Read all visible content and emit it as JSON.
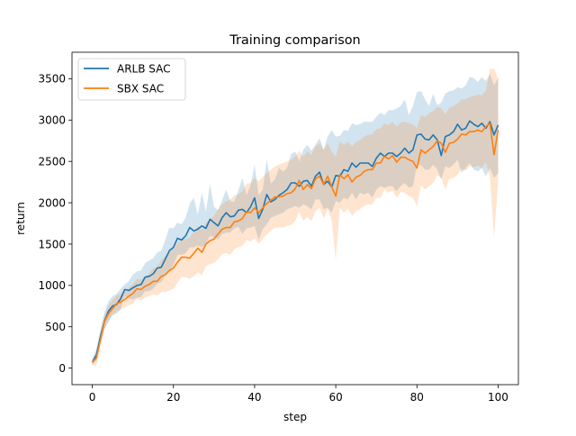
{
  "chart_data": {
    "type": "line",
    "title": "Training comparison",
    "xlabel": "step",
    "ylabel": "return",
    "xlim": [
      -5,
      105
    ],
    "ylim": [
      -200,
      3820
    ],
    "grid": false,
    "legend_position": "top-left",
    "x_ticks": [
      0,
      20,
      40,
      60,
      80,
      100
    ],
    "y_ticks": [
      0,
      500,
      1000,
      1500,
      2000,
      2500,
      3000,
      3500
    ],
    "series": [
      {
        "name": "ARLB SAC",
        "color": "#1f77b4",
        "x": [
          0,
          1,
          2,
          3,
          4,
          5,
          6,
          7,
          8,
          9,
          10,
          11,
          12,
          13,
          14,
          15,
          16,
          17,
          18,
          19,
          20,
          21,
          22,
          23,
          24,
          25,
          26,
          27,
          28,
          29,
          30,
          31,
          32,
          33,
          34,
          35,
          36,
          37,
          38,
          39,
          40,
          41,
          42,
          43,
          44,
          45,
          46,
          47,
          48,
          49,
          50,
          51,
          52,
          53,
          54,
          55,
          56,
          57,
          58,
          59,
          60,
          61,
          62,
          63,
          64,
          65,
          66,
          67,
          68,
          69,
          70,
          71,
          72,
          73,
          74,
          75,
          76,
          77,
          78,
          79,
          80,
          81,
          82,
          83,
          84,
          85,
          86,
          87,
          88,
          89,
          90,
          91,
          92,
          93,
          94,
          95,
          96,
          97,
          98,
          99,
          100
        ],
        "values": [
          70,
          160,
          380,
          570,
          690,
          750,
          770,
          840,
          950,
          940,
          970,
          1000,
          1010,
          1100,
          1110,
          1140,
          1210,
          1220,
          1320,
          1420,
          1460,
          1570,
          1550,
          1600,
          1700,
          1660,
          1680,
          1720,
          1690,
          1800,
          1760,
          1720,
          1820,
          1880,
          1830,
          1840,
          1910,
          1920,
          1880,
          1950,
          2060,
          1810,
          1920,
          2100,
          2010,
          2040,
          2090,
          2120,
          2160,
          2240,
          2240,
          2200,
          2260,
          2270,
          2200,
          2320,
          2370,
          2220,
          2260,
          2190,
          2330,
          2320,
          2400,
          2380,
          2480,
          2430,
          2480,
          2480,
          2480,
          2440,
          2540,
          2600,
          2560,
          2600,
          2600,
          2560,
          2600,
          2660,
          2600,
          2640,
          2820,
          2830,
          2770,
          2760,
          2820,
          2760,
          2570,
          2800,
          2820,
          2860,
          2950,
          2880,
          2900,
          2990,
          2950,
          2920,
          2960,
          2900,
          2980,
          2820,
          2940
        ],
        "upper": [
          120,
          230,
          470,
          680,
          810,
          870,
          900,
          960,
          1010,
          1050,
          1130,
          1170,
          1180,
          1270,
          1300,
          1330,
          1400,
          1420,
          1550,
          1700,
          1690,
          1760,
          1740,
          1820,
          1990,
          2060,
          1860,
          2120,
          1890,
          2230,
          1950,
          1910,
          2030,
          2160,
          2020,
          2010,
          2150,
          2300,
          2090,
          2210,
          2460,
          2090,
          2160,
          2520,
          2230,
          2280,
          2420,
          2380,
          2420,
          2590,
          2620,
          2500,
          2640,
          2700,
          2630,
          2700,
          2780,
          2640,
          2800,
          2880,
          2800,
          2810,
          2880,
          2870,
          2960,
          2940,
          2950,
          2980,
          2980,
          2980,
          3040,
          3090,
          3060,
          3120,
          3120,
          3140,
          3170,
          3250,
          3060,
          3170,
          3340,
          3350,
          3250,
          3170,
          3320,
          3180,
          3210,
          3320,
          3350,
          3360,
          3400,
          3380,
          3420,
          3520,
          3510,
          3460,
          3520,
          3470,
          3560,
          3420,
          3510
        ],
        "lower": [
          30,
          100,
          310,
          470,
          560,
          640,
          660,
          710,
          870,
          840,
          830,
          850,
          860,
          930,
          930,
          960,
          1020,
          1040,
          1120,
          1180,
          1240,
          1370,
          1370,
          1390,
          1460,
          1460,
          1480,
          1460,
          1500,
          1600,
          1580,
          1560,
          1620,
          1640,
          1640,
          1690,
          1710,
          1620,
          1690,
          1700,
          1720,
          1550,
          1680,
          1740,
          1820,
          1840,
          1860,
          1880,
          1920,
          1940,
          1960,
          1940,
          1980,
          1960,
          1920,
          2040,
          2040,
          1920,
          1940,
          1880,
          2020,
          2000,
          2060,
          2040,
          2120,
          2040,
          2120,
          2100,
          2120,
          2060,
          2160,
          2200,
          2180,
          2200,
          2200,
          2140,
          2200,
          2240,
          2180,
          2200,
          2460,
          2450,
          2400,
          2400,
          2460,
          2400,
          2280,
          2440,
          2420,
          2460,
          2520,
          2360,
          2420,
          2480,
          2400,
          2380,
          2420,
          2320,
          2420,
          2300,
          2360
        ]
      },
      {
        "name": "SBX SAC",
        "color": "#ff7f0e",
        "x": [
          0,
          1,
          2,
          3,
          4,
          5,
          6,
          7,
          8,
          9,
          10,
          11,
          12,
          13,
          14,
          15,
          16,
          17,
          18,
          19,
          20,
          21,
          22,
          23,
          24,
          25,
          26,
          27,
          28,
          29,
          30,
          31,
          32,
          33,
          34,
          35,
          36,
          37,
          38,
          39,
          40,
          41,
          42,
          43,
          44,
          45,
          46,
          47,
          48,
          49,
          50,
          51,
          52,
          53,
          54,
          55,
          56,
          57,
          58,
          59,
          60,
          61,
          62,
          63,
          64,
          65,
          66,
          67,
          68,
          69,
          70,
          71,
          72,
          73,
          74,
          75,
          76,
          77,
          78,
          79,
          80,
          81,
          82,
          83,
          84,
          85,
          86,
          87,
          88,
          89,
          90,
          91,
          92,
          93,
          94,
          95,
          96,
          97,
          98,
          99,
          100
        ],
        "values": [
          70,
          120,
          340,
          560,
          660,
          720,
          780,
          800,
          830,
          870,
          900,
          960,
          950,
          990,
          1010,
          1050,
          1050,
          1110,
          1130,
          1180,
          1210,
          1280,
          1340,
          1340,
          1330,
          1390,
          1450,
          1400,
          1500,
          1540,
          1560,
          1620,
          1680,
          1700,
          1700,
          1770,
          1780,
          1810,
          1890,
          1880,
          1940,
          1880,
          1940,
          1990,
          2030,
          2070,
          2070,
          2080,
          2110,
          2120,
          2170,
          2270,
          2160,
          2220,
          2170,
          2290,
          2320,
          2220,
          2320,
          2190,
          2080,
          2340,
          2290,
          2340,
          2250,
          2310,
          2330,
          2380,
          2400,
          2400,
          2480,
          2480,
          2560,
          2530,
          2570,
          2490,
          2550,
          2550,
          2520,
          2500,
          2420,
          2640,
          2600,
          2640,
          2680,
          2750,
          2720,
          2610,
          2720,
          2730,
          2770,
          2830,
          2820,
          2860,
          2860,
          2880,
          2860,
          2920,
          2960,
          2580,
          2880
        ],
        "upper": [
          100,
          180,
          420,
          640,
          760,
          820,
          880,
          900,
          940,
          980,
          1010,
          1080,
          1070,
          1110,
          1150,
          1210,
          1230,
          1310,
          1350,
          1400,
          1440,
          1510,
          1560,
          1560,
          1580,
          1650,
          1720,
          1680,
          1760,
          1800,
          1840,
          1920,
          1980,
          2020,
          2040,
          2090,
          2100,
          2140,
          2230,
          2240,
          2300,
          2260,
          2310,
          2360,
          2400,
          2440,
          2460,
          2480,
          2500,
          2520,
          2560,
          2630,
          2560,
          2620,
          2580,
          2680,
          2720,
          2640,
          2720,
          2620,
          2560,
          2740,
          2700,
          2740,
          2680,
          2740,
          2760,
          2800,
          2820,
          2830,
          2890,
          2900,
          2960,
          2940,
          2980,
          2920,
          2970,
          2980,
          2960,
          2950,
          2900,
          3060,
          3040,
          3080,
          3110,
          3160,
          3140,
          3070,
          3150,
          3170,
          3200,
          3250,
          3250,
          3280,
          3290,
          3310,
          3300,
          3350,
          3620,
          3620,
          3500
        ],
        "lower": [
          40,
          20,
          270,
          470,
          580,
          640,
          690,
          710,
          730,
          760,
          780,
          840,
          820,
          850,
          870,
          890,
          880,
          920,
          920,
          940,
          960,
          1030,
          1100,
          1100,
          1080,
          1110,
          1160,
          1120,
          1230,
          1260,
          1270,
          1320,
          1380,
          1390,
          1370,
          1440,
          1460,
          1480,
          1550,
          1530,
          1570,
          1500,
          1560,
          1620,
          1660,
          1700,
          1700,
          1700,
          1720,
          1730,
          1780,
          1890,
          1780,
          1830,
          1780,
          1900,
          1940,
          1810,
          1920,
          1780,
          1300,
          1940,
          1880,
          1930,
          1840,
          1900,
          1920,
          1960,
          1980,
          1980,
          2060,
          2060,
          2160,
          2120,
          2150,
          2060,
          2130,
          2120,
          2080,
          2060,
          1960,
          2210,
          2160,
          2200,
          2240,
          2330,
          2300,
          2160,
          2290,
          2300,
          2340,
          2410,
          2390,
          2440,
          2430,
          2450,
          2420,
          2490,
          2300,
          1580,
          2260
        ]
      }
    ]
  }
}
